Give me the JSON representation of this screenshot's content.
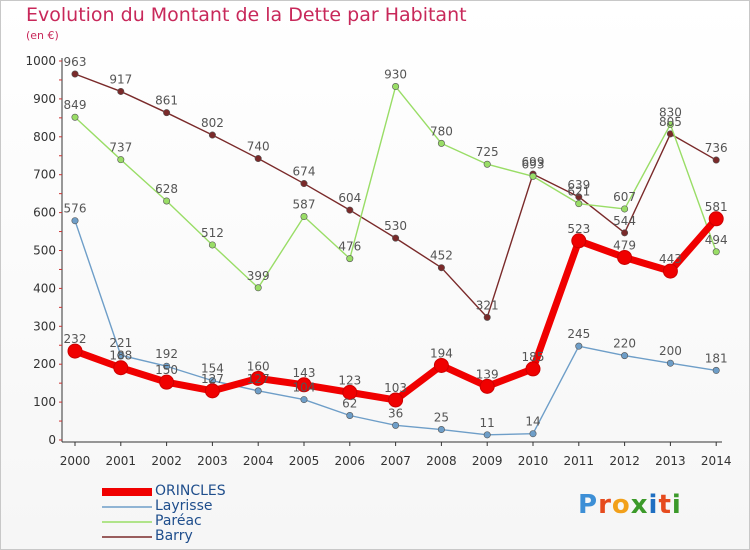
{
  "title": "Evolution du Montant de la Dette par Habitant",
  "unit": "(en €)",
  "logo": {
    "text": "Proxiti",
    "letter_colors": [
      "#3d8fd6",
      "#e64b1e",
      "#f2a01a",
      "#3c9a2a",
      "#1f6fc2",
      "#e64b1e",
      "#3c9a2a"
    ]
  },
  "chart_data": {
    "type": "line",
    "title": "Evolution du Montant de la Dette par Habitant",
    "xlabel": "",
    "ylabel": "(en €)",
    "x": [
      "2000",
      "2001",
      "2002",
      "2003",
      "2004",
      "2005",
      "2006",
      "2007",
      "2008",
      "2009",
      "2010",
      "2011",
      "2012",
      "2013",
      "2014"
    ],
    "ylim": [
      0,
      1000
    ],
    "yticks": [
      0,
      100,
      200,
      300,
      400,
      500,
      600,
      700,
      800,
      900,
      1000
    ],
    "grid": false,
    "legend_position": "bottom-left",
    "series": [
      {
        "name": "ORINCLES",
        "color": "#f00000",
        "values": [
          232,
          188,
          150,
          127,
          160,
          143,
          123,
          103,
          194,
          139,
          185,
          523,
          479,
          443,
          581
        ]
      },
      {
        "name": "Layrisse",
        "color": "#6e9ec8",
        "values": [
          576,
          221,
          192,
          154,
          127,
          104,
          62,
          36,
          25,
          11,
          14,
          245,
          220,
          200,
          181
        ]
      },
      {
        "name": "Paréac",
        "color": "#99dd66",
        "values": [
          849,
          737,
          628,
          512,
          399,
          587,
          476,
          930,
          780,
          725,
          693,
          621,
          607,
          830,
          494
        ]
      },
      {
        "name": "Barry",
        "color": "#7a2a2a",
        "values": [
          963,
          917,
          861,
          802,
          740,
          674,
          604,
          530,
          452,
          321,
          699,
          639,
          544,
          805,
          736
        ]
      }
    ]
  }
}
